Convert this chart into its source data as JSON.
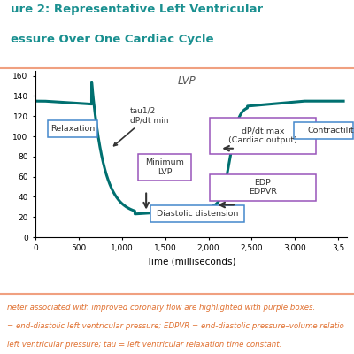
{
  "title_line1": "ure 2: Representative Left Ventricular",
  "title_line2": "essure Over One Cardiac Cycle",
  "title_color": "#1a9090",
  "figure_bg": "#ffffff",
  "plot_bg": "#ffffff",
  "border_color": "#f0a080",
  "curve_color": "#007070",
  "curve_linewidth": 2.2,
  "xlabel": "Time (milliseconds)",
  "xlim": [
    0,
    3600
  ],
  "ylim": [
    0,
    165
  ],
  "yticks": [
    0,
    20,
    40,
    60,
    80,
    100,
    120,
    140,
    160
  ],
  "xticks": [
    0,
    500,
    1000,
    1500,
    2000,
    2500,
    3000,
    3500
  ],
  "xtick_labels": [
    "0",
    "500",
    "1,000",
    "1,500",
    "2,000",
    "2,500",
    "3,000",
    "3,5"
  ],
  "lvp_label": "LVP",
  "footer_lines": [
    "neter associated with improved coronary flow are highlighted with purple boxes.",
    "= end-diastolic left ventricular pressure; EDPVR = end-diastolic pressure–volume relatio",
    "left ventricular pressure; tau = left ventricular relaxation time constant."
  ],
  "footer_color": "#e07030",
  "footer_fontsize": 6.2,
  "purple_box_color": "#9955bb",
  "blue_box_color": "#4488cc",
  "tau_text": "tau1/2\ndP/dt min"
}
